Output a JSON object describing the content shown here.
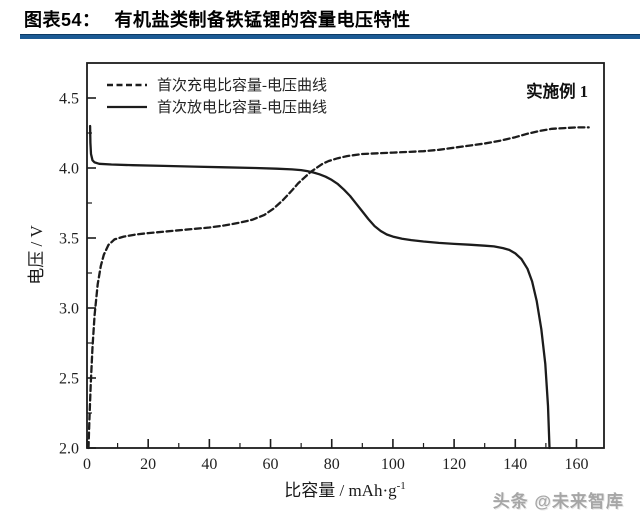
{
  "header": {
    "title_prefix": "图表54：",
    "title": "有机盐类制备铁锰锂的容量电压特性",
    "rule_color": "#1b5a94"
  },
  "watermark": {
    "text": "头条 @未来智库"
  },
  "chart_data": {
    "type": "line",
    "title": "",
    "xlabel_main": "比容量 / mAh·g",
    "xlabel_sup": "-1",
    "ylabel": "电压 / V",
    "annotation": "实施例 1",
    "xlim": [
      0,
      169
    ],
    "ylim": [
      2.0,
      4.75
    ],
    "x_major_ticks": [
      0,
      20,
      40,
      60,
      80,
      100,
      120,
      140,
      160
    ],
    "x_minor_ticks": [
      10,
      30,
      50,
      70,
      90,
      110,
      130,
      150
    ],
    "y_major_ticks": [
      2.0,
      2.5,
      3.0,
      3.5,
      4.0,
      4.5
    ],
    "y_minor_ticks": [
      2.25,
      2.75,
      3.25,
      3.75,
      4.25
    ],
    "grid": false,
    "legend_position": "top-left-inside",
    "line_color": "#1c1c1c",
    "legend": [
      {
        "label": "首次充电比容量-电压曲线",
        "style": "dashed"
      },
      {
        "label": "首次放电比容量-电压曲线",
        "style": "solid"
      }
    ],
    "series": [
      {
        "name": "首次充电比容量-电压曲线",
        "style": "dashed",
        "points": [
          [
            0.5,
            2.0
          ],
          [
            0.8,
            2.2
          ],
          [
            1.2,
            2.45
          ],
          [
            1.8,
            2.72
          ],
          [
            2.5,
            2.95
          ],
          [
            3.5,
            3.17
          ],
          [
            4.5,
            3.3
          ],
          [
            5.5,
            3.38
          ],
          [
            7,
            3.45
          ],
          [
            9,
            3.49
          ],
          [
            12,
            3.51
          ],
          [
            16,
            3.525
          ],
          [
            20,
            3.535
          ],
          [
            25,
            3.545
          ],
          [
            30,
            3.555
          ],
          [
            35,
            3.565
          ],
          [
            40,
            3.575
          ],
          [
            45,
            3.59
          ],
          [
            50,
            3.61
          ],
          [
            54,
            3.63
          ],
          [
            58,
            3.665
          ],
          [
            61,
            3.71
          ],
          [
            64,
            3.77
          ],
          [
            67,
            3.84
          ],
          [
            69,
            3.89
          ],
          [
            71,
            3.93
          ],
          [
            73,
            3.97
          ],
          [
            75,
            4.0
          ],
          [
            77,
            4.03
          ],
          [
            79,
            4.05
          ],
          [
            82,
            4.07
          ],
          [
            85,
            4.085
          ],
          [
            90,
            4.1
          ],
          [
            95,
            4.105
          ],
          [
            100,
            4.11
          ],
          [
            105,
            4.115
          ],
          [
            110,
            4.12
          ],
          [
            115,
            4.13
          ],
          [
            120,
            4.145
          ],
          [
            125,
            4.16
          ],
          [
            130,
            4.175
          ],
          [
            135,
            4.195
          ],
          [
            140,
            4.22
          ],
          [
            144,
            4.245
          ],
          [
            148,
            4.265
          ],
          [
            152,
            4.28
          ],
          [
            156,
            4.285
          ],
          [
            160,
            4.29
          ],
          [
            164,
            4.29
          ]
        ]
      },
      {
        "name": "首次放电比容量-电压曲线",
        "style": "solid",
        "points": [
          [
            1.0,
            4.3
          ],
          [
            1.1,
            4.18
          ],
          [
            1.3,
            4.1
          ],
          [
            1.8,
            4.055
          ],
          [
            2.5,
            4.04
          ],
          [
            4,
            4.03
          ],
          [
            8,
            4.025
          ],
          [
            15,
            4.02
          ],
          [
            25,
            4.015
          ],
          [
            35,
            4.01
          ],
          [
            45,
            4.005
          ],
          [
            55,
            4.0
          ],
          [
            62,
            3.995
          ],
          [
            67,
            3.99
          ],
          [
            70,
            3.985
          ],
          [
            72,
            3.978
          ],
          [
            74,
            3.968
          ],
          [
            76,
            3.955
          ],
          [
            78,
            3.938
          ],
          [
            80,
            3.915
          ],
          [
            82,
            3.885
          ],
          [
            84,
            3.845
          ],
          [
            86,
            3.8
          ],
          [
            88,
            3.745
          ],
          [
            90,
            3.69
          ],
          [
            92,
            3.635
          ],
          [
            94,
            3.585
          ],
          [
            96,
            3.55
          ],
          [
            98,
            3.525
          ],
          [
            100,
            3.51
          ],
          [
            103,
            3.495
          ],
          [
            106,
            3.485
          ],
          [
            110,
            3.475
          ],
          [
            115,
            3.465
          ],
          [
            120,
            3.458
          ],
          [
            125,
            3.452
          ],
          [
            130,
            3.445
          ],
          [
            133,
            3.44
          ],
          [
            136,
            3.428
          ],
          [
            138,
            3.415
          ],
          [
            140,
            3.39
          ],
          [
            142,
            3.35
          ],
          [
            144,
            3.28
          ],
          [
            145.5,
            3.19
          ],
          [
            147,
            3.05
          ],
          [
            148.5,
            2.85
          ],
          [
            149.8,
            2.6
          ],
          [
            150.7,
            2.3
          ],
          [
            151.2,
            2.0
          ]
        ]
      }
    ]
  }
}
